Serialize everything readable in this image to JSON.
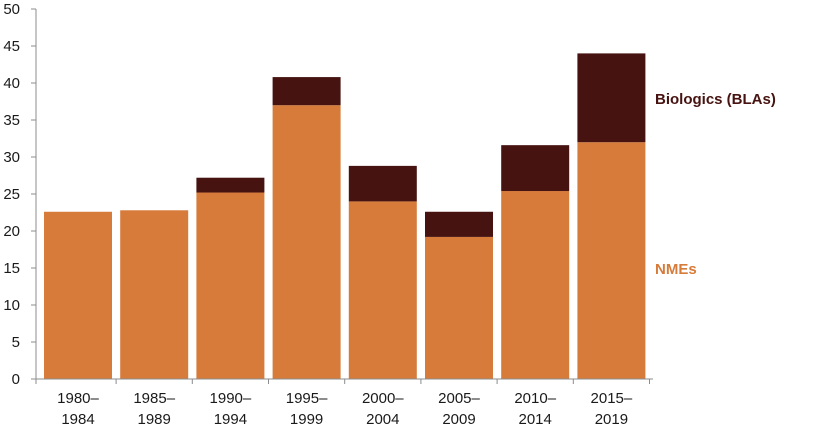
{
  "chart_data": {
    "type": "bar",
    "stacked": true,
    "categories": [
      [
        "1980–",
        "1984"
      ],
      [
        "1985–",
        "1989"
      ],
      [
        "1990–",
        "1994"
      ],
      [
        "1995–",
        "1999"
      ],
      [
        "2000–",
        "2004"
      ],
      [
        "2005–",
        "2009"
      ],
      [
        "2010–",
        "2014"
      ],
      [
        "2015–",
        "2019"
      ]
    ],
    "series": [
      {
        "name": "NMEs",
        "color": "#D67B3A",
        "values": [
          22.6,
          22.8,
          25.2,
          37.0,
          24.0,
          19.2,
          25.4,
          32.0
        ]
      },
      {
        "name": "Biologics (BLAs)",
        "color": "#461311",
        "values": [
          0,
          0,
          2.0,
          3.8,
          4.8,
          3.4,
          6.2,
          12.0
        ]
      }
    ],
    "ylim": [
      0,
      50
    ],
    "yticks": [
      0,
      5,
      10,
      15,
      20,
      25,
      30,
      35,
      40,
      45,
      50
    ],
    "xlabel": "",
    "ylabel": "",
    "title": "",
    "grid": false,
    "legend_placement": "right, inline labels"
  }
}
